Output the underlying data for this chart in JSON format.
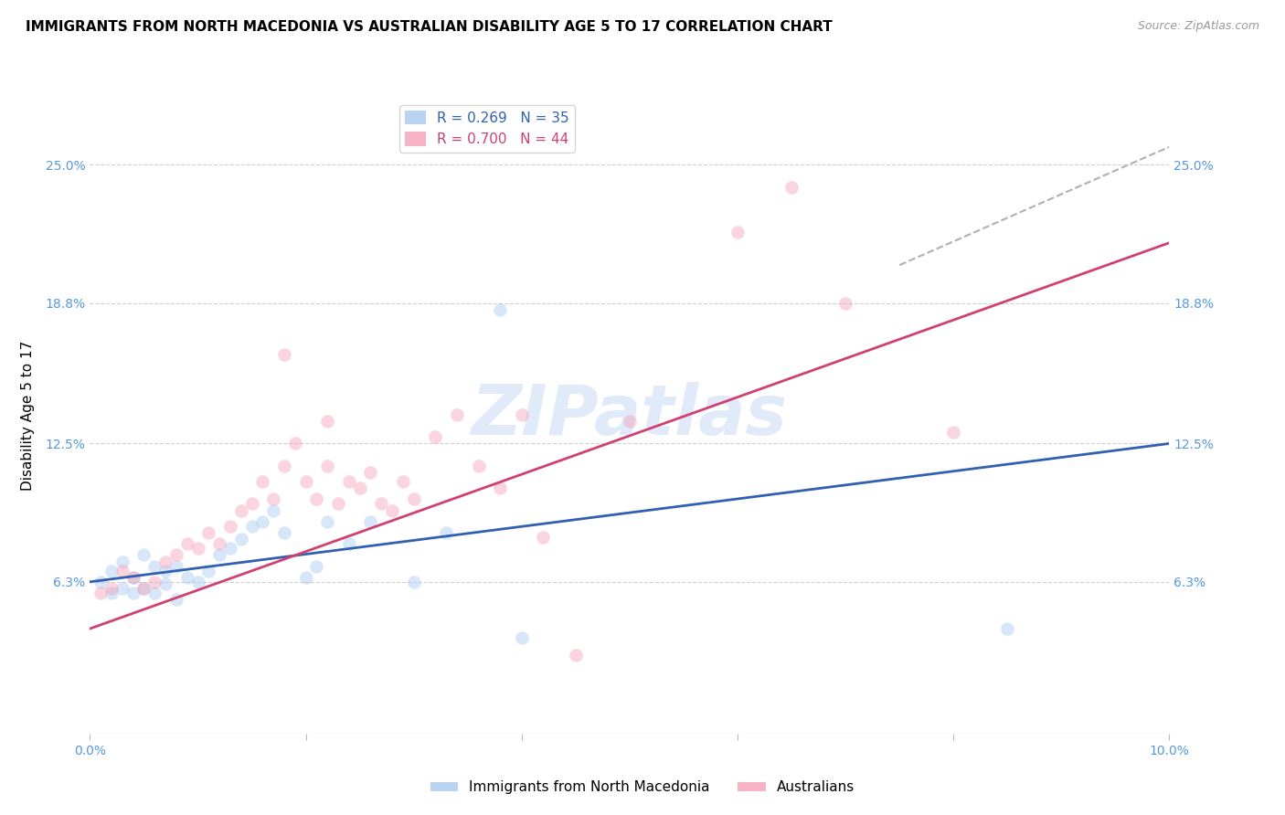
{
  "title": "IMMIGRANTS FROM NORTH MACEDONIA VS AUSTRALIAN DISABILITY AGE 5 TO 17 CORRELATION CHART",
  "source": "Source: ZipAtlas.com",
  "ylabel": "Disability Age 5 to 17",
  "xlim": [
    0.0,
    0.1
  ],
  "ylim": [
    -0.005,
    0.28
  ],
  "ytick_positions": [
    0.063,
    0.125,
    0.188,
    0.25
  ],
  "ytick_labels": [
    "6.3%",
    "12.5%",
    "18.8%",
    "25.0%"
  ],
  "watermark": "ZIPatlas",
  "legend_entries": [
    {
      "label": "R = 0.269   N = 35",
      "color": "#a8c8f0"
    },
    {
      "label": "R = 0.700   N = 44",
      "color": "#f4a0b8"
    }
  ],
  "blue_scatter_x": [
    0.001,
    0.002,
    0.002,
    0.003,
    0.003,
    0.004,
    0.004,
    0.005,
    0.005,
    0.006,
    0.006,
    0.007,
    0.007,
    0.008,
    0.008,
    0.009,
    0.01,
    0.011,
    0.012,
    0.013,
    0.014,
    0.015,
    0.016,
    0.017,
    0.018,
    0.02,
    0.021,
    0.022,
    0.024,
    0.026,
    0.03,
    0.033,
    0.038,
    0.085,
    0.04
  ],
  "blue_scatter_y": [
    0.063,
    0.058,
    0.068,
    0.06,
    0.072,
    0.058,
    0.065,
    0.06,
    0.075,
    0.058,
    0.07,
    0.062,
    0.068,
    0.055,
    0.07,
    0.065,
    0.063,
    0.068,
    0.075,
    0.078,
    0.082,
    0.088,
    0.09,
    0.095,
    0.085,
    0.065,
    0.07,
    0.09,
    0.08,
    0.09,
    0.063,
    0.085,
    0.185,
    0.042,
    0.038
  ],
  "pink_scatter_x": [
    0.001,
    0.002,
    0.003,
    0.004,
    0.005,
    0.006,
    0.007,
    0.008,
    0.009,
    0.01,
    0.011,
    0.012,
    0.013,
    0.014,
    0.015,
    0.016,
    0.017,
    0.018,
    0.019,
    0.02,
    0.021,
    0.022,
    0.023,
    0.024,
    0.025,
    0.026,
    0.027,
    0.028,
    0.029,
    0.03,
    0.032,
    0.034,
    0.036,
    0.038,
    0.04,
    0.042,
    0.05,
    0.06,
    0.065,
    0.07,
    0.018,
    0.022,
    0.08,
    0.045
  ],
  "pink_scatter_y": [
    0.058,
    0.06,
    0.068,
    0.065,
    0.06,
    0.063,
    0.072,
    0.075,
    0.08,
    0.078,
    0.085,
    0.08,
    0.088,
    0.095,
    0.098,
    0.108,
    0.1,
    0.115,
    0.125,
    0.108,
    0.1,
    0.115,
    0.098,
    0.108,
    0.105,
    0.112,
    0.098,
    0.095,
    0.108,
    0.1,
    0.128,
    0.138,
    0.115,
    0.105,
    0.138,
    0.083,
    0.135,
    0.22,
    0.24,
    0.188,
    0.165,
    0.135,
    0.13,
    0.03
  ],
  "blue_line_x": [
    0.0,
    0.1
  ],
  "blue_line_y": [
    0.063,
    0.125
  ],
  "pink_line_x": [
    0.0,
    0.1
  ],
  "pink_line_y": [
    0.042,
    0.215
  ],
  "dashed_line_x": [
    0.075,
    0.1
  ],
  "dashed_line_y": [
    0.205,
    0.258
  ],
  "scatter_size": 110,
  "scatter_alpha": 0.45,
  "blue_color": "#a8c8f0",
  "pink_color": "#f4a0b8",
  "blue_line_color": "#3060b0",
  "pink_line_color": "#d04070",
  "dashed_line_color": "#b0b0b0",
  "grid_color": "#d0d0d0",
  "title_fontsize": 11,
  "axis_label_fontsize": 11,
  "tick_fontsize": 10,
  "legend_fontsize": 11,
  "source_fontsize": 9,
  "ytick_color": "#5599dd",
  "xtick_color": "#5599dd"
}
